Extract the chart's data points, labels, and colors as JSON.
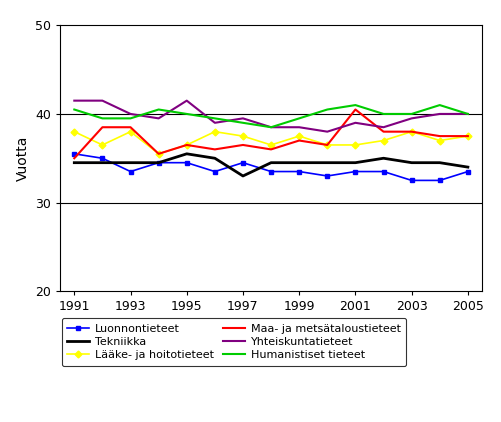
{
  "years": [
    1991,
    1992,
    1993,
    1994,
    1995,
    1996,
    1997,
    1998,
    1999,
    2000,
    2001,
    2002,
    2003,
    2004,
    2005
  ],
  "Luonnontieteet": [
    35.5,
    35.0,
    33.5,
    34.5,
    34.5,
    33.5,
    34.5,
    33.5,
    33.5,
    33.0,
    33.5,
    33.5,
    32.5,
    32.5,
    33.5
  ],
  "Tekniikka": [
    34.5,
    34.5,
    34.5,
    34.5,
    35.5,
    35.0,
    33.0,
    34.5,
    34.5,
    34.5,
    34.5,
    35.0,
    34.5,
    34.5,
    34.0
  ],
  "Laake": [
    38.0,
    36.5,
    38.0,
    35.5,
    36.5,
    38.0,
    37.5,
    36.5,
    37.5,
    36.5,
    36.5,
    37.0,
    38.0,
    37.0,
    37.5
  ],
  "Maa": [
    35.0,
    38.5,
    38.5,
    35.5,
    36.5,
    36.0,
    36.5,
    36.0,
    37.0,
    36.5,
    40.5,
    38.0,
    38.0,
    37.5,
    37.5
  ],
  "Yhteiskunta": [
    41.5,
    41.5,
    40.0,
    39.5,
    41.5,
    39.0,
    39.5,
    38.5,
    38.5,
    38.0,
    39.0,
    38.5,
    39.5,
    40.0,
    40.0
  ],
  "Humanistiset": [
    40.5,
    39.5,
    39.5,
    40.5,
    40.0,
    39.5,
    39.0,
    38.5,
    39.5,
    40.5,
    41.0,
    40.0,
    40.0,
    41.0,
    40.0
  ],
  "color_Luonnontieteet": "#0000FF",
  "color_Tekniikka": "#000000",
  "color_Laake": "#FFFF00",
  "color_Maa": "#FF0000",
  "color_Yhteiskunta": "#800080",
  "color_Humanistiset": "#00CC00",
  "label_Luonnontieteet": "Luonnontieteet",
  "label_Tekniikka": "Tekniikka",
  "label_Laake": "Lääke- ja hoitotieteet",
  "label_Maa": "Maa- ja metsätaloustieteet",
  "label_Yhteiskunta": "Yhteiskuntatieteet",
  "label_Humanistiset": "Humanistiset tieteet",
  "ylabel": "Vuotta",
  "ylim": [
    20,
    50
  ],
  "yticks": [
    20,
    30,
    40,
    50
  ],
  "xticks": [
    1991,
    1993,
    1995,
    1997,
    1999,
    2001,
    2003,
    2005
  ],
  "xlim": [
    1990.5,
    2005.5
  ],
  "grid_lines": [
    30,
    40
  ],
  "figwidth": 5.02,
  "figheight": 4.22,
  "dpi": 100
}
